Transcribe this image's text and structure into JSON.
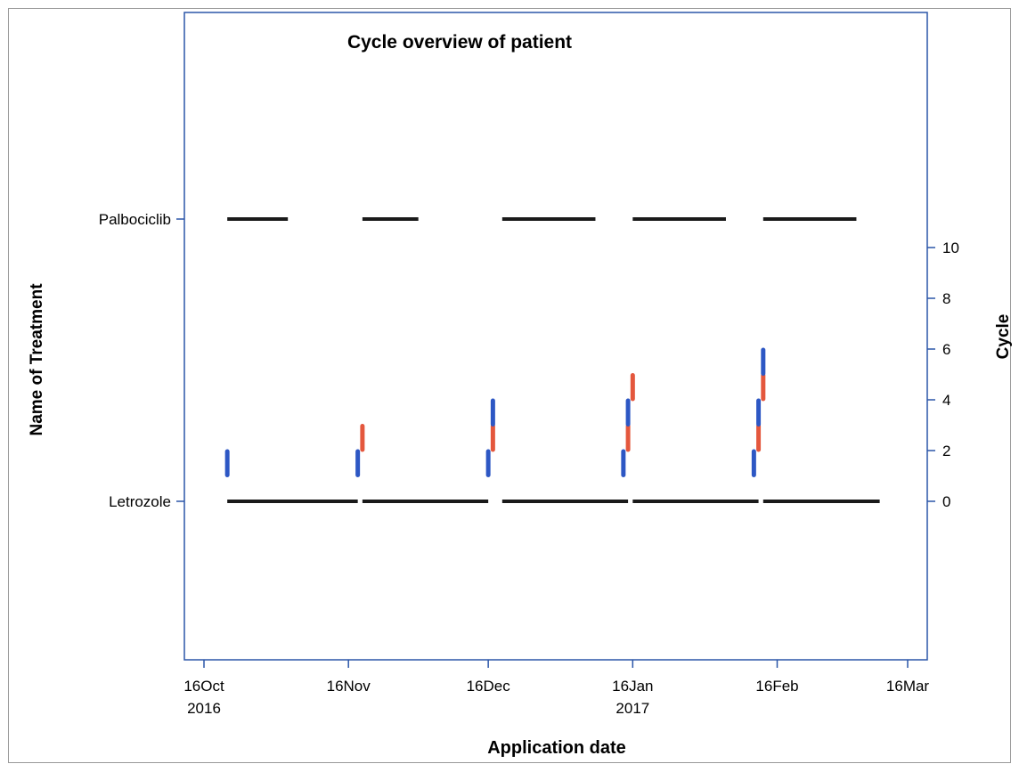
{
  "chart_data": {
    "type": "timeline",
    "title": "Cycle overview of patient",
    "xlabel": "Application date",
    "ylabel": "Name of Treatment",
    "y2label": "Cycle",
    "x_range": [
      "2016-10-16",
      "2017-03-16"
    ],
    "x_ticks": [
      {
        "date": "2016-10-16",
        "line1": "16Oct",
        "line2": "2016"
      },
      {
        "date": "2016-11-16",
        "line1": "16Nov",
        "line2": ""
      },
      {
        "date": "2016-12-16",
        "line1": "16Dec",
        "line2": ""
      },
      {
        "date": "2017-01-16",
        "line1": "16Jan",
        "line2": "2017"
      },
      {
        "date": "2017-02-16",
        "line1": "16Feb",
        "line2": ""
      },
      {
        "date": "2017-03-16",
        "line1": "16Mar",
        "line2": ""
      }
    ],
    "treatments": [
      "Palbociclib",
      "Letrozole"
    ],
    "y2_range": [
      -5,
      16
    ],
    "y2_ticks": [
      0,
      2,
      4,
      6,
      8,
      10
    ],
    "treatment_segments": [
      {
        "treatment": "Palbociclib",
        "start": "2016-10-21",
        "end": "2016-11-03"
      },
      {
        "treatment": "Palbociclib",
        "start": "2016-11-19",
        "end": "2016-12-01"
      },
      {
        "treatment": "Palbociclib",
        "start": "2016-12-19",
        "end": "2017-01-08"
      },
      {
        "treatment": "Palbociclib",
        "start": "2017-01-16",
        "end": "2017-02-05"
      },
      {
        "treatment": "Palbociclib",
        "start": "2017-02-13",
        "end": "2017-03-05"
      },
      {
        "treatment": "Letrozole",
        "start": "2016-10-21",
        "end": "2016-11-18"
      },
      {
        "treatment": "Letrozole",
        "start": "2016-11-19",
        "end": "2016-12-16"
      },
      {
        "treatment": "Letrozole",
        "start": "2016-12-19",
        "end": "2017-01-15"
      },
      {
        "treatment": "Letrozole",
        "start": "2017-01-16",
        "end": "2017-02-12"
      },
      {
        "treatment": "Letrozole",
        "start": "2017-02-13",
        "end": "2017-03-10"
      }
    ],
    "cycle_markers": [
      {
        "date": "2016-10-21",
        "from": 1,
        "to": 2,
        "color": "#2d57c4"
      },
      {
        "date": "2016-11-18",
        "from": 1,
        "to": 2,
        "color": "#2d57c4"
      },
      {
        "date": "2016-11-19",
        "from": 2,
        "to": 3,
        "color": "#e4573d"
      },
      {
        "date": "2016-12-16",
        "from": 1,
        "to": 2,
        "color": "#2d57c4"
      },
      {
        "date": "2016-12-17",
        "from": 2,
        "to": 3,
        "color": "#e4573d"
      },
      {
        "date": "2016-12-17",
        "from": 3,
        "to": 4,
        "color": "#2d57c4"
      },
      {
        "date": "2017-01-14",
        "from": 1,
        "to": 2,
        "color": "#2d57c4"
      },
      {
        "date": "2017-01-15",
        "from": 2,
        "to": 3,
        "color": "#e4573d"
      },
      {
        "date": "2017-01-15",
        "from": 3,
        "to": 4,
        "color": "#2d57c4"
      },
      {
        "date": "2017-01-16",
        "from": 4,
        "to": 5,
        "color": "#e4573d"
      },
      {
        "date": "2017-02-11",
        "from": 1,
        "to": 2,
        "color": "#2d57c4"
      },
      {
        "date": "2017-02-12",
        "from": 2,
        "to": 3,
        "color": "#e4573d"
      },
      {
        "date": "2017-02-12",
        "from": 3,
        "to": 4,
        "color": "#2d57c4"
      },
      {
        "date": "2017-02-13",
        "from": 4,
        "to": 5,
        "color": "#e4573d"
      },
      {
        "date": "2017-02-13",
        "from": 5,
        "to": 6,
        "color": "#2d57c4"
      }
    ],
    "colors": {
      "axis": "#2b56a8",
      "segment": "#1a1a1a",
      "blue": "#2d57c4",
      "red": "#e4573d"
    }
  }
}
